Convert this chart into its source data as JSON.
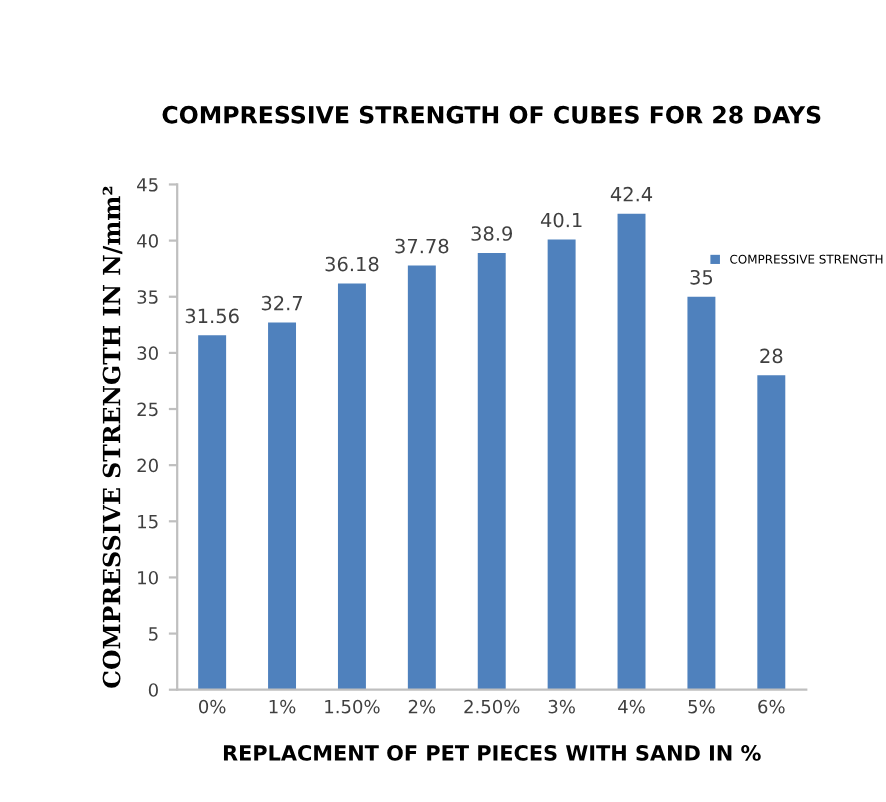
{
  "chart_data": {
    "type": "bar",
    "title": "COMPRESSIVE STRENGTH OF CUBES FOR 28 DAYS",
    "xlabel": "REPLACMENT OF PET PIECES WITH SAND IN %",
    "ylabel": "COMPRESSIVE STRENGTH IN N/mm²",
    "categories": [
      "0%",
      "1%",
      "1.50%",
      "2%",
      "2.50%",
      "3%",
      "4%",
      "5%",
      "6%"
    ],
    "series": [
      {
        "name": "COMPRESSIVE STRENGTH",
        "color": "#4f81bd",
        "values": [
          31.56,
          32.7,
          36.18,
          37.78,
          38.9,
          40.1,
          42.4,
          35,
          28
        ]
      }
    ],
    "ylim": [
      0,
      45
    ],
    "yticks": [
      0,
      5,
      10,
      15,
      20,
      25,
      30,
      35,
      40,
      45
    ],
    "data_labels": true,
    "grid": false,
    "legend": "right"
  }
}
